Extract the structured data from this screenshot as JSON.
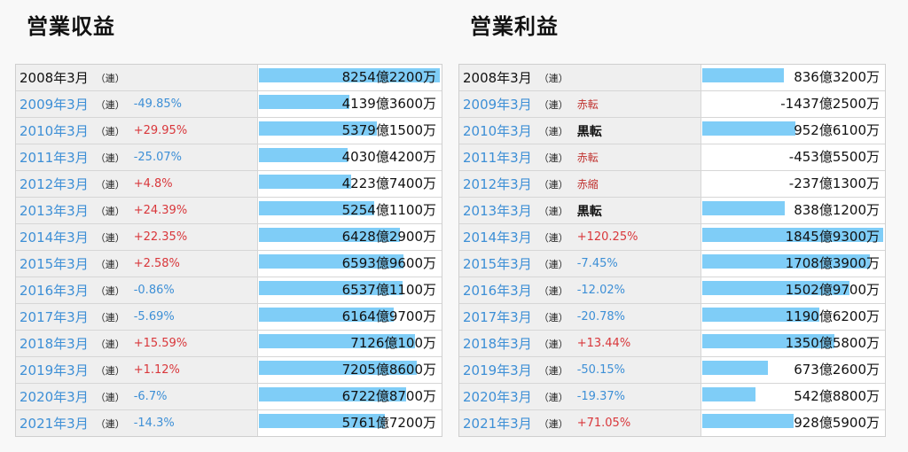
{
  "headings": {
    "revenue": "営業収益",
    "profit": "営業利益"
  },
  "chart_data": [
    {
      "type": "bar",
      "title": "営業収益",
      "rows": [
        {
          "year": "2008年3月",
          "ren": "（連）",
          "change": "",
          "tag": "",
          "value": "8254億2200万",
          "amount": 8254.22
        },
        {
          "year": "2009年3月",
          "ren": "（連）",
          "change": "-49.85%",
          "tag": "",
          "value": "4139億3600万",
          "amount": 4139.36
        },
        {
          "year": "2010年3月",
          "ren": "（連）",
          "change": "+29.95%",
          "tag": "",
          "value": "5379億1500万",
          "amount": 5379.15
        },
        {
          "year": "2011年3月",
          "ren": "（連）",
          "change": "-25.07%",
          "tag": "",
          "value": "4030億4200万",
          "amount": 4030.42
        },
        {
          "year": "2012年3月",
          "ren": "（連）",
          "change": "+4.8%",
          "tag": "",
          "value": "4223億7400万",
          "amount": 4223.74
        },
        {
          "year": "2013年3月",
          "ren": "（連）",
          "change": "+24.39%",
          "tag": "",
          "value": "5254億1100万",
          "amount": 5254.11
        },
        {
          "year": "2014年3月",
          "ren": "（連）",
          "change": "+22.35%",
          "tag": "",
          "value": "6428億2900万",
          "amount": 6428.29
        },
        {
          "year": "2015年3月",
          "ren": "（連）",
          "change": "+2.58%",
          "tag": "",
          "value": "6593億9600万",
          "amount": 6593.96
        },
        {
          "year": "2016年3月",
          "ren": "（連）",
          "change": "-0.86%",
          "tag": "",
          "value": "6537億1100万",
          "amount": 6537.11
        },
        {
          "year": "2017年3月",
          "ren": "（連）",
          "change": "-5.69%",
          "tag": "",
          "value": "6164億9700万",
          "amount": 6164.97
        },
        {
          "year": "2018年3月",
          "ren": "（連）",
          "change": "+15.59%",
          "tag": "",
          "value": "7126億100万",
          "amount": 7126.01
        },
        {
          "year": "2019年3月",
          "ren": "（連）",
          "change": "+1.12%",
          "tag": "",
          "value": "7205億8600万",
          "amount": 7205.86
        },
        {
          "year": "2020年3月",
          "ren": "（連）",
          "change": "-6.7%",
          "tag": "",
          "value": "6722億8700万",
          "amount": 6722.87
        },
        {
          "year": "2021年3月",
          "ren": "（連）",
          "change": "-14.3%",
          "tag": "",
          "value": "5761億7200万",
          "amount": 5761.72
        }
      ]
    },
    {
      "type": "bar",
      "title": "営業利益",
      "rows": [
        {
          "year": "2008年3月",
          "ren": "（連）",
          "change": "",
          "tag": "",
          "value": "836億3200万",
          "amount": 836.32
        },
        {
          "year": "2009年3月",
          "ren": "（連）",
          "change": "",
          "tag": "赤転",
          "value": "-1437億2500万",
          "amount": -1437.25
        },
        {
          "year": "2010年3月",
          "ren": "（連）",
          "change": "",
          "tag": "黒転",
          "value": "952億6100万",
          "amount": 952.61
        },
        {
          "year": "2011年3月",
          "ren": "（連）",
          "change": "",
          "tag": "赤転",
          "value": "-453億5500万",
          "amount": -453.55
        },
        {
          "year": "2012年3月",
          "ren": "（連）",
          "change": "",
          "tag": "赤縮",
          "value": "-237億1300万",
          "amount": -237.13
        },
        {
          "year": "2013年3月",
          "ren": "（連）",
          "change": "",
          "tag": "黒転",
          "value": "838億1200万",
          "amount": 838.12
        },
        {
          "year": "2014年3月",
          "ren": "（連）",
          "change": "+120.25%",
          "tag": "",
          "value": "1845億9300万",
          "amount": 1845.93
        },
        {
          "year": "2015年3月",
          "ren": "（連）",
          "change": "-7.45%",
          "tag": "",
          "value": "1708億3900万",
          "amount": 1708.39
        },
        {
          "year": "2016年3月",
          "ren": "（連）",
          "change": "-12.02%",
          "tag": "",
          "value": "1502億9700万",
          "amount": 1502.97
        },
        {
          "year": "2017年3月",
          "ren": "（連）",
          "change": "-20.78%",
          "tag": "",
          "value": "1190億6200万",
          "amount": 1190.62
        },
        {
          "year": "2018年3月",
          "ren": "（連）",
          "change": "+13.44%",
          "tag": "",
          "value": "1350億5800万",
          "amount": 1350.58
        },
        {
          "year": "2019年3月",
          "ren": "（連）",
          "change": "-50.15%",
          "tag": "",
          "value": "673億2600万",
          "amount": 673.26
        },
        {
          "year": "2020年3月",
          "ren": "（連）",
          "change": "-19.37%",
          "tag": "",
          "value": "542億8800万",
          "amount": 542.88
        },
        {
          "year": "2021年3月",
          "ren": "（連）",
          "change": "+71.05%",
          "tag": "",
          "value": "928億5900万",
          "amount": 928.59
        }
      ]
    }
  ],
  "colors": {
    "bar": "#7fcdf7",
    "up": "#d9373b",
    "down": "#3d8fd6",
    "red_tag": "#c0322f",
    "link": "#3d8fd6"
  }
}
